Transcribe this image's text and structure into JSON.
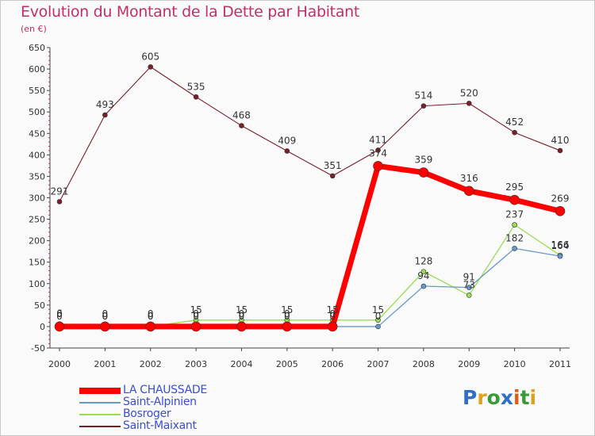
{
  "chart_data": {
    "type": "line",
    "title": "Evolution du Montant de la Dette par Habitant",
    "subtitle": "(en €)",
    "x": [
      "2000",
      "2001",
      "2002",
      "2003",
      "2004",
      "2005",
      "2006",
      "2007",
      "2008",
      "2009",
      "2010",
      "2011"
    ],
    "ylim": [
      -50,
      650
    ],
    "yticks": [
      -50,
      0,
      50,
      100,
      150,
      200,
      250,
      300,
      350,
      400,
      450,
      500,
      550,
      600,
      650
    ],
    "grid": false,
    "legend_position": "bottom-left",
    "series": [
      {
        "name": "LA CHAUSSADE",
        "color": "#ff0000",
        "values": [
          0,
          0,
          0,
          0,
          0,
          0,
          0,
          374,
          359,
          316,
          295,
          269
        ]
      },
      {
        "name": "Saint-Alpinien",
        "color": "#6699cc",
        "values": [
          0,
          0,
          0,
          0,
          0,
          0,
          0,
          0,
          94,
          91,
          182,
          164
        ]
      },
      {
        "name": "Bosroger",
        "color": "#99dd55",
        "values": [
          6,
          0,
          0,
          15,
          15,
          15,
          15,
          15,
          128,
          73,
          237,
          166
        ]
      },
      {
        "name": "Saint-Maixant",
        "color": "#7a1f2a",
        "values": [
          291,
          493,
          605,
          535,
          468,
          409,
          351,
          411,
          514,
          520,
          452,
          410
        ]
      }
    ]
  },
  "logo": {
    "letters": [
      "P",
      "r",
      "o",
      "x",
      "i",
      "t",
      "i"
    ],
    "colors": [
      "#2f6fc5",
      "#e0a11c",
      "#3a9a3a",
      "#2f6fc5",
      "#e05a1a",
      "#3a9a3a",
      "#d9a21a"
    ]
  }
}
